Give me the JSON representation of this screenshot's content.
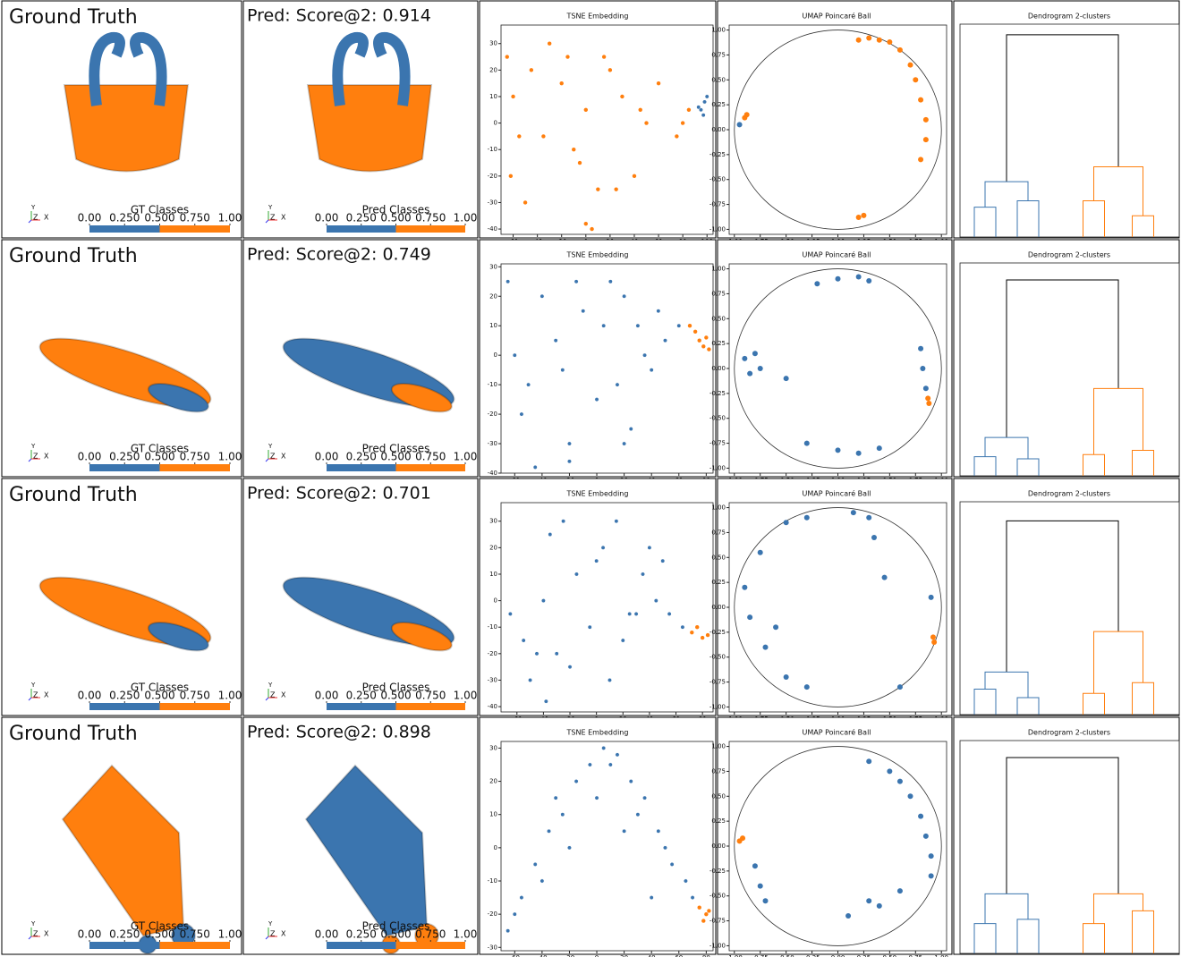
{
  "tsne_title": "TSNE Embedding",
  "umap_title": "UMAP Poincaré Ball",
  "dendrogram_title": "Dendrogram 2-clusters",
  "gt_colorbar_label": "GT Classes",
  "pred_colorbar_label": "Pred Classes",
  "colorbar_colors": [
    "#3b75af",
    "#ff7f0e"
  ],
  "colorbar_lim": [
    0,
    1
  ],
  "colorbar_ticks": [
    {
      "value": 0,
      "label": "0.00"
    },
    {
      "value": 0.25,
      "label": "0.250"
    },
    {
      "value": 0.5,
      "label": "0.500"
    },
    {
      "value": 0.75,
      "label": "0.750"
    },
    {
      "value": 1,
      "label": "1.00"
    }
  ],
  "triad_labels": [
    "Y",
    "Z",
    "X"
  ],
  "point_colors": [
    "#3b75af",
    "#ff7f0e"
  ],
  "umap_lim": [
    -1.05,
    1.05
  ],
  "umap_ticks": [
    {
      "value": -1,
      "label": "-1.00"
    },
    {
      "value": -0.75,
      "label": "-0.75"
    },
    {
      "value": -0.5,
      "label": "-0.50"
    },
    {
      "value": -0.25,
      "label": "-0.25"
    },
    {
      "value": 0,
      "label": "0.00"
    },
    {
      "value": 0.25,
      "label": "0.25"
    },
    {
      "value": 0.5,
      "label": "0.50"
    },
    {
      "value": 0.75,
      "label": "0.75"
    },
    {
      "value": 1,
      "label": "1.00"
    }
  ],
  "rows": [
    {
      "gt_title": "Ground Truth",
      "pred_title": "Pred: Score@2: 0.914",
      "tsne": {
        "xlim": [
          -70,
          105
        ],
        "ylim": [
          -42,
          37
        ],
        "xticks": [
          -60,
          -40,
          -20,
          0,
          20,
          40,
          60,
          80,
          100
        ],
        "yticks": [
          -40,
          -30,
          -20,
          -10,
          0,
          10,
          20,
          30
        ],
        "points": [
          {
            "x": [
              95,
              98,
              100,
              97,
              93
            ],
            "y": [
              5,
              8,
              10,
              3,
              6
            ]
          },
          {
            "x": [
              -65,
              -60,
              -55,
              -45,
              -30,
              -20,
              -10,
              0,
              10,
              20,
              30,
              40,
              50,
              60,
              -50,
              -35,
              -15,
              5,
              25,
              45,
              80,
              85,
              75,
              -5,
              15,
              0,
              -62
            ],
            "y": [
              25,
              10,
              -5,
              20,
              30,
              15,
              -10,
              5,
              -25,
              20,
              10,
              -20,
              0,
              15,
              -30,
              -5,
              25,
              -40,
              -25,
              5,
              0,
              5,
              -5,
              -15,
              25,
              -38,
              -20
            ]
          }
        ]
      },
      "umap": {
        "points": [
          {
            "x": [
              -0.95
            ],
            "y": [
              0.05
            ]
          },
          {
            "x": [
              -0.9,
              -0.88,
              0.2,
              0.3,
              0.4,
              0.5,
              0.6,
              0.7,
              0.75,
              0.8,
              0.85,
              0.85,
              0.8,
              0.2,
              0.25
            ],
            "y": [
              0.12,
              0.15,
              0.9,
              0.92,
              0.9,
              0.88,
              0.8,
              0.65,
              0.5,
              0.3,
              0.1,
              -0.1,
              -0.3,
              -0.88,
              -0.86
            ]
          }
        ]
      },
      "dendrogram": {
        "root": 0.95,
        "left": 0.26,
        "right": 0.33,
        "left_children": [
          0.14,
          0.17
        ],
        "right_children": [
          0.17,
          0.1
        ]
      }
    },
    {
      "gt_title": "Ground Truth",
      "pred_title": "Pred: Score@2: 0.749",
      "tsne": {
        "xlim": [
          -70,
          85
        ],
        "ylim": [
          -40,
          31
        ],
        "xticks": [
          -60,
          -40,
          -20,
          0,
          20,
          40,
          60,
          80
        ],
        "yticks": [
          -40,
          -30,
          -20,
          -10,
          0,
          10,
          20,
          30
        ],
        "points": [
          {
            "x": [
              -65,
              -60,
              -50,
              -40,
              -30,
              -20,
              -10,
              0,
              10,
              20,
              30,
              40,
              50,
              -55,
              -25,
              5,
              25,
              45,
              -45,
              -15,
              15,
              35,
              60,
              -20,
              20
            ],
            "y": [
              25,
              0,
              -10,
              20,
              5,
              -30,
              15,
              -15,
              25,
              -30,
              10,
              -5,
              5,
              -20,
              -5,
              10,
              -25,
              15,
              -38,
              25,
              -10,
              0,
              10,
              -36,
              20
            ]
          },
          {
            "x": [
              68,
              72,
              75,
              78,
              80,
              82
            ],
            "y": [
              10,
              8,
              5,
              3,
              6,
              2
            ]
          }
        ]
      },
      "umap": {
        "points": [
          {
            "x": [
              -0.9,
              -0.85,
              -0.8,
              -0.75,
              -0.2,
              0,
              0.2,
              0.3,
              -0.3,
              0,
              0.2,
              0.4,
              0.8,
              0.82,
              0.85,
              -0.5
            ],
            "y": [
              0.1,
              -0.05,
              0.15,
              0,
              0.85,
              0.9,
              0.92,
              0.88,
              -0.75,
              -0.82,
              -0.85,
              -0.8,
              0.2,
              0,
              -0.2,
              -0.1
            ]
          },
          {
            "x": [
              0.87,
              0.88
            ],
            "y": [
              -0.3,
              -0.35
            ]
          }
        ]
      },
      "dendrogram": {
        "root": 0.92,
        "left": 0.18,
        "right": 0.41,
        "left_children": [
          0.09,
          0.08
        ],
        "right_children": [
          0.1,
          0.12
        ]
      }
    },
    {
      "gt_title": "Ground Truth",
      "pred_title": "Pred: Score@2: 0.701",
      "tsne": {
        "xlim": [
          -72,
          88
        ],
        "ylim": [
          -42,
          37
        ],
        "xticks": [
          -60,
          -40,
          -20,
          0,
          20,
          40,
          60,
          80
        ],
        "yticks": [
          -40,
          -30,
          -20,
          -10,
          0,
          10,
          20,
          30
        ],
        "points": [
          {
            "x": [
              -65,
              -55,
              -45,
              -35,
              -25,
              -15,
              -5,
              5,
              15,
              25,
              35,
              45,
              55,
              65,
              -40,
              -20,
              0,
              20,
              40,
              -50,
              -30,
              10,
              30,
              50,
              -38
            ],
            "y": [
              -5,
              -15,
              -20,
              25,
              30,
              10,
              -10,
              20,
              30,
              -5,
              10,
              0,
              -5,
              -10,
              0,
              -25,
              15,
              -15,
              20,
              -30,
              -20,
              -30,
              -5,
              15,
              -38
            ]
          },
          {
            "x": [
              72,
              76,
              80,
              84
            ],
            "y": [
              -12,
              -10,
              -14,
              -13
            ]
          }
        ]
      },
      "umap": {
        "points": [
          {
            "x": [
              -0.5,
              -0.3,
              -0.9,
              -0.85,
              -0.7,
              -0.5,
              -0.3,
              0.15,
              0.3,
              0.35,
              0.45,
              0.9,
              -0.75,
              0.6,
              -0.6
            ],
            "y": [
              0.85,
              0.9,
              0.2,
              -0.1,
              -0.4,
              -0.7,
              -0.8,
              0.95,
              0.9,
              0.7,
              0.3,
              0.1,
              0.55,
              -0.8,
              -0.2
            ]
          },
          {
            "x": [
              0.92,
              0.93
            ],
            "y": [
              -0.3,
              -0.35
            ]
          }
        ]
      },
      "dendrogram": {
        "root": 0.91,
        "left": 0.2,
        "right": 0.39,
        "left_children": [
          0.12,
          0.08
        ],
        "right_children": [
          0.1,
          0.15
        ]
      }
    },
    {
      "gt_title": "Ground Truth",
      "pred_title": "Pred: Score@2: 0.898",
      "tsne": {
        "xlim": [
          -70,
          85
        ],
        "ylim": [
          -31,
          32
        ],
        "xticks": [
          -60,
          -40,
          -20,
          0,
          20,
          40,
          60,
          80
        ],
        "yticks": [
          -30,
          -20,
          -10,
          0,
          10,
          20,
          30
        ],
        "points": [
          {
            "x": [
              -65,
              -55,
              -45,
              -35,
              -25,
              -15,
              -5,
              5,
              15,
              25,
              35,
              45,
              55,
              65,
              -40,
              -20,
              0,
              20,
              40,
              -60,
              -30,
              10,
              30,
              50,
              70
            ],
            "y": [
              -25,
              -15,
              -5,
              5,
              10,
              20,
              25,
              30,
              28,
              20,
              15,
              5,
              -5,
              -10,
              -10,
              0,
              15,
              5,
              -15,
              -20,
              15,
              25,
              10,
              0,
              -15
            ]
          },
          {
            "x": [
              75,
              78,
              80,
              82
            ],
            "y": [
              -18,
              -22,
              -20,
              -19
            ]
          }
        ]
      },
      "umap": {
        "points": [
          {
            "x": [
              -0.8,
              -0.75,
              -0.7,
              0.3,
              0.5,
              0.6,
              0.7,
              0.8,
              0.85,
              0.9,
              0.9,
              0.6,
              0.3,
              0.1,
              0.4
            ],
            "y": [
              -0.2,
              -0.4,
              -0.55,
              0.85,
              0.75,
              0.65,
              0.5,
              0.3,
              0.1,
              -0.1,
              -0.3,
              -0.45,
              -0.55,
              -0.7,
              -0.6
            ]
          },
          {
            "x": [
              -0.95,
              -0.92
            ],
            "y": [
              0.05,
              0.08
            ]
          }
        ]
      },
      "dendrogram": {
        "root": 0.92,
        "left": 0.28,
        "right": 0.28,
        "left_children": [
          0.14,
          0.16
        ],
        "right_children": [
          0.14,
          0.2
        ]
      }
    }
  ]
}
